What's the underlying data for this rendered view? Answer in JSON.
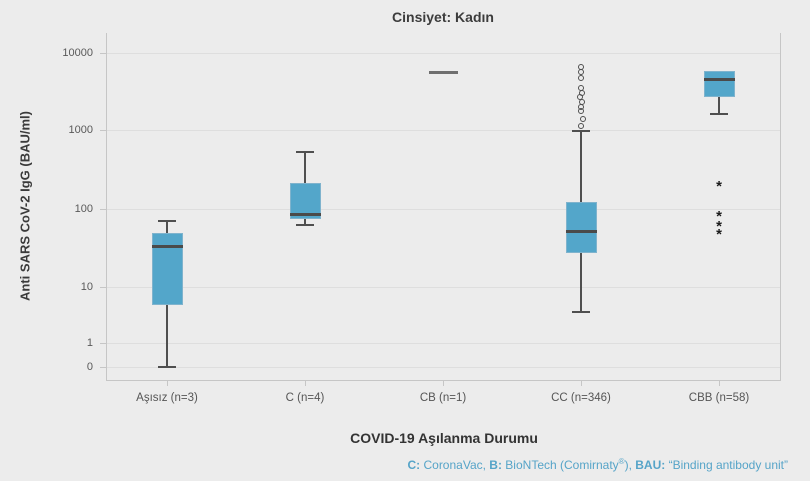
{
  "page": {
    "background": "#ececec",
    "accent_blue": "#53a6ca"
  },
  "chart_data": {
    "type": "box",
    "title": "Cinsiyet: Kadın",
    "xlabel": "COVID-19 Aşılanma Durumu",
    "ylabel": "Anti SARS CoV-2 IgG (BAU/ml)",
    "y_scale": "log",
    "grid": true,
    "ylim": [
      0,
      10000
    ],
    "y_ticks": [
      {
        "label": "10000",
        "value": 10000
      },
      {
        "label": "1000",
        "value": 1000
      },
      {
        "label": "100",
        "value": 100
      },
      {
        "label": "10",
        "value": 10
      },
      {
        "label": "1",
        "value": 1
      },
      {
        "label": "0",
        "value": 0
      }
    ],
    "categories": [
      "Aşısız (n=3)",
      "C (n=4)",
      "CB (n=1)",
      "CC (n=346)",
      "CBB (n=58)"
    ],
    "series": [
      {
        "category": "Aşısız (n=3)",
        "n": 3,
        "min": 0,
        "q1": 4.7,
        "median": 33,
        "q3": 49,
        "max": 70,
        "outliers": []
      },
      {
        "category": "C (n=4)",
        "n": 4,
        "min": 62,
        "q1": 75,
        "median": 86,
        "q3": 215,
        "max": 520,
        "outliers": []
      },
      {
        "category": "CB (n=1)",
        "n": 1,
        "single_value": 5650
      },
      {
        "category": "CC (n=346)",
        "n": 346,
        "min": 3.6,
        "q1": 27,
        "median": 51,
        "q3": 123,
        "max": 975,
        "outliers": [
          6500,
          5650,
          4750,
          3550,
          3050,
          2650,
          2300,
          2000,
          1750,
          1370,
          1120
        ]
      },
      {
        "category": "CBB (n=58)",
        "n": 58,
        "min": 1615,
        "q1": 2680,
        "median": 4590,
        "q3": 5840,
        "max": 5840,
        "outliers": []
      }
    ],
    "significance_marks": [
      {
        "symbol": "*",
        "category_index": 4,
        "value": 215
      },
      {
        "symbol": "*",
        "category_index": 4,
        "value": 88
      },
      {
        "symbol": "*",
        "category_index": 4,
        "value": 67
      },
      {
        "symbol": "*",
        "category_index": 4,
        "value": 52
      }
    ],
    "colors": {
      "box_fill": "#53a6ca",
      "box_border": "#7fb3cd",
      "median": "#4a4a4a",
      "whisker": "#4f4f4f",
      "gridline": "#dedede",
      "caption_blue": "#56a4c8"
    }
  },
  "footnote": {
    "parts": [
      {
        "t": "C:",
        "b": true
      },
      {
        "t": " CoronaVac, ",
        "b": false
      },
      {
        "t": "B:",
        "b": true
      },
      {
        "t": " BioNTech (Comirnaty",
        "b": false
      },
      {
        "t": "®",
        "b": false,
        "sup": true
      },
      {
        "t": "), ",
        "b": false
      },
      {
        "t": "BAU:",
        "b": true
      },
      {
        "t": " “Binding antibody unit”",
        "b": false
      }
    ]
  }
}
